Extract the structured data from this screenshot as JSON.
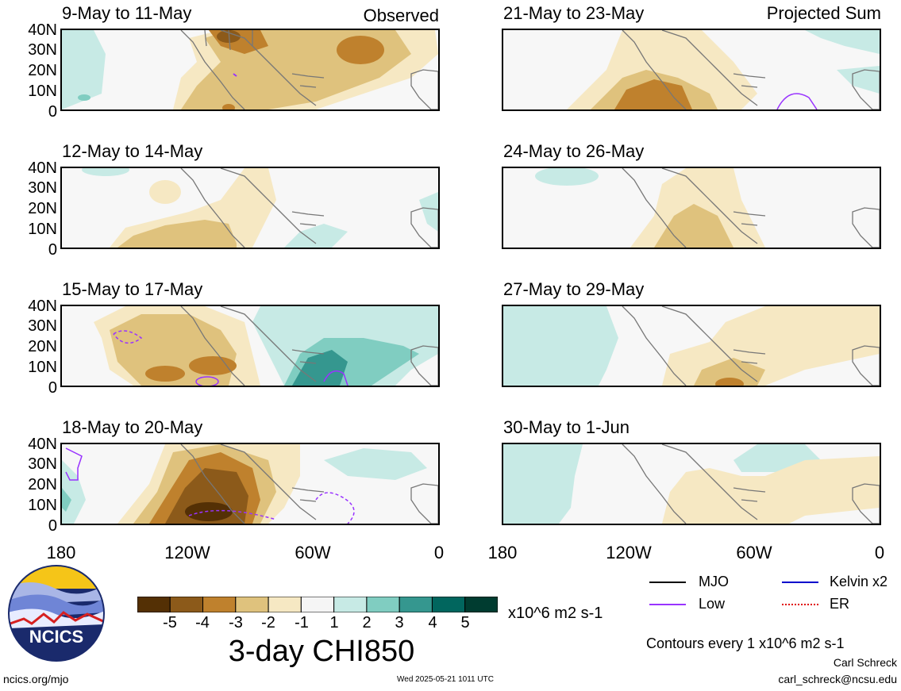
{
  "panels_left": [
    {
      "title": "9-May to 11-May",
      "note": "Observed"
    },
    {
      "title": "12-May to 14-May",
      "note": ""
    },
    {
      "title": "15-May to 17-May",
      "note": ""
    },
    {
      "title": "18-May to 20-May",
      "note": ""
    }
  ],
  "panels_right": [
    {
      "title": "21-May to 23-May",
      "note": "Projected Sum"
    },
    {
      "title": "24-May to 26-May",
      "note": ""
    },
    {
      "title": "27-May to 29-May",
      "note": ""
    },
    {
      "title": "30-May to 1-Jun",
      "note": ""
    }
  ],
  "lat_labels": [
    "40N",
    "30N",
    "20N",
    "10N",
    "0"
  ],
  "lon_labels": [
    "180",
    "120W",
    "60W",
    "0"
  ],
  "colorbar": {
    "title": "3-day CHI850",
    "units": "x10^6 m2 s-1",
    "tick_labels": [
      "-5",
      "-4",
      "-3",
      "-2",
      "-1",
      "1",
      "2",
      "3",
      "4",
      "5"
    ],
    "colors": [
      "#543005",
      "#8c5a1a",
      "#bf812d",
      "#dfc27d",
      "#f6e8c3",
      "#f5f5f5",
      "#c7eae5",
      "#80cdc1",
      "#35978f",
      "#01665e",
      "#003c30"
    ]
  },
  "legend": {
    "items": [
      {
        "label": "MJO",
        "color": "#000000"
      },
      {
        "label": "Kelvin x2",
        "color": "#0000cc"
      },
      {
        "label": "Low",
        "color": "#9933ff"
      },
      {
        "label": "ER",
        "color": "#e00000"
      }
    ],
    "contour_note": "Contours every 1 x10^6 m2 s-1"
  },
  "logo_text": "NCICS",
  "footer": {
    "url": "ncics.org/mjo",
    "timestamp": "Wed 2025-05-21 1011 UTC",
    "author": "Carl Schreck",
    "email": "carl_schreck@ncsu.edu"
  }
}
